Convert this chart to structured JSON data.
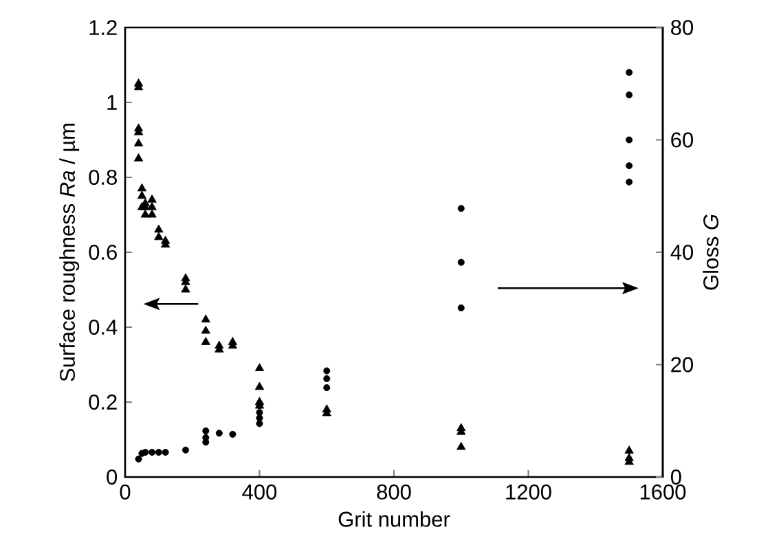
{
  "chart_data": {
    "type": "scatter",
    "xlabel": "Grit number",
    "ylabel": "Surface roughness *Ra* / µm",
    "y2label": "Gloss *G*",
    "xlim": [
      0,
      1600
    ],
    "xticks": [
      0,
      400,
      800,
      1200,
      1600
    ],
    "ylim": [
      0,
      1.2
    ],
    "yticks": [
      0,
      0.2,
      0.4,
      0.6,
      0.8,
      1,
      1.2
    ],
    "y2lim": [
      0,
      80
    ],
    "y2ticks": [
      0,
      20,
      40,
      60,
      80
    ],
    "grid": false,
    "series": [
      {
        "color": "#000000",
        "marker": "triangle",
        "axis": "y",
        "x": [
          40,
          40,
          40,
          40,
          40,
          40,
          50,
          50,
          50,
          60,
          60,
          60,
          80,
          80,
          80,
          100,
          100,
          120,
          120,
          180,
          180,
          180,
          240,
          240,
          240,
          280,
          280,
          320,
          320,
          400,
          400,
          400,
          400,
          600,
          600,
          1000,
          1000,
          1000,
          1500,
          1500,
          1500
        ],
        "values": [
          1.05,
          1.04,
          0.93,
          0.92,
          0.89,
          0.85,
          0.77,
          0.75,
          0.72,
          0.73,
          0.72,
          0.7,
          0.74,
          0.72,
          0.7,
          0.66,
          0.64,
          0.63,
          0.62,
          0.53,
          0.52,
          0.5,
          0.42,
          0.39,
          0.36,
          0.35,
          0.34,
          0.36,
          0.35,
          0.29,
          0.24,
          0.2,
          0.19,
          0.18,
          0.17,
          0.13,
          0.12,
          0.08,
          0.07,
          0.05,
          0.04
        ]
      },
      {
        "color": "#000000",
        "marker": "circle",
        "axis": "y2",
        "x": [
          40,
          50,
          60,
          80,
          100,
          120,
          180,
          240,
          240,
          240,
          280,
          320,
          400,
          400,
          400,
          400,
          600,
          600,
          600,
          1000,
          1000,
          1000,
          1500,
          1500,
          1500,
          1500,
          1500
        ],
        "values": [
          3.2,
          4.2,
          4.4,
          4.4,
          4.4,
          4.4,
          4.8,
          8.2,
          7,
          6.2,
          7.8,
          7.6,
          12.7,
          11.5,
          10.5,
          9.5,
          18.9,
          17.5,
          15.9,
          47.8,
          38.2,
          30.1,
          72,
          68,
          60,
          55.4,
          52.5
        ]
      }
    ]
  }
}
